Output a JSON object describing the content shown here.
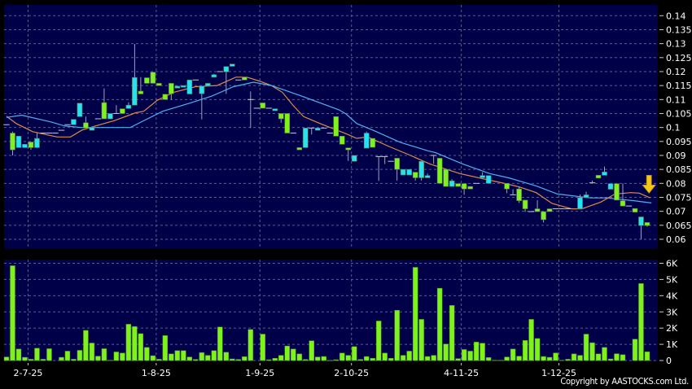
{
  "chart_data": [
    {
      "type": "candlestick",
      "panel": "price",
      "x_unit": "trading-day bar index",
      "x_tick_labels": [
        {
          "bar": 4,
          "label": "2-7-25"
        },
        {
          "bar": 25,
          "label": "1-8-25"
        },
        {
          "bar": 42,
          "label": "1-9-25"
        },
        {
          "bar": 57,
          "label": "2-10-25"
        },
        {
          "bar": 75,
          "label": "4-11-25"
        },
        {
          "bar": 91,
          "label": "1-12-25"
        }
      ],
      "ylim": [
        0.06,
        0.14
      ],
      "y_ticks": [
        "0.06",
        "0.065",
        "0.07",
        "0.075",
        "0.08",
        "0.085",
        "0.09",
        "0.095",
        "0.1",
        "0.105",
        "0.11",
        "0.115",
        "0.12",
        "0.125",
        "0.13",
        "0.135",
        "0.14"
      ],
      "grid": true,
      "colors": {
        "up": "#22e4f2",
        "down": "#7ff21a",
        "flat": "#c8c8d8",
        "wick": "#a0a0b8",
        "ma_short": "#e08a4a",
        "ma_long": "#4fb0f0",
        "arrow": "#f5c518",
        "background": "#000048",
        "gridline": "#5c5c90"
      },
      "ohlc_format": [
        "open",
        "high",
        "low",
        "close"
      ],
      "candles": [
        [
          0.101,
          0.101,
          0.101,
          0.101
        ],
        [
          0.098,
          0.0985,
          0.09,
          0.092
        ],
        [
          0.0928,
          0.0969,
          0.0928,
          0.0969
        ],
        [
          0.0928,
          0.094,
          0.0928,
          0.094
        ],
        [
          0.0948,
          0.0948,
          0.092,
          0.0928
        ],
        [
          0.0928,
          0.0982,
          0.0928,
          0.0961
        ],
        [
          0.098,
          0.098,
          0.098,
          0.098
        ],
        [
          0.098,
          0.098,
          0.098,
          0.098
        ],
        [
          0.098,
          0.098,
          0.098,
          0.098
        ],
        [
          0.099,
          0.099,
          0.099,
          0.099
        ],
        [
          0.101,
          0.101,
          0.101,
          0.101
        ],
        [
          0.101,
          0.1029,
          0.101,
          0.1029
        ],
        [
          0.1039,
          0.1087,
          0.1039,
          0.1087
        ],
        [
          0.1017,
          0.1039,
          0.0998,
          0.0998
        ],
        [
          0.099,
          0.1003,
          0.099,
          0.1
        ],
        [
          0.1031,
          0.1031,
          0.1031,
          0.1031
        ],
        [
          0.1089,
          0.114,
          0.1031,
          0.1031
        ],
        [
          0.1031,
          0.105,
          0.1031,
          0.105
        ],
        [
          0.105,
          0.108,
          0.105,
          0.105
        ],
        [
          0.1067,
          0.1067,
          0.105,
          0.105
        ],
        [
          0.1068,
          0.109,
          0.1068,
          0.108
        ],
        [
          0.108,
          0.1299,
          0.108,
          0.1179
        ],
        [
          0.113,
          0.118,
          0.112,
          0.112
        ],
        [
          0.1178,
          0.1178,
          0.1158,
          0.1158
        ],
        [
          0.1198,
          0.1198,
          0.1158,
          0.1158
        ],
        [
          0.1158,
          0.1158,
          0.115,
          0.115
        ],
        [
          0.1119,
          0.1119,
          0.11,
          0.11
        ],
        [
          0.1158,
          0.1158,
          0.11,
          0.1121
        ],
        [
          0.1141,
          0.1148,
          0.1141,
          0.1148
        ],
        [
          0.1145,
          0.115,
          0.1145,
          0.115
        ],
        [
          0.112,
          0.117,
          0.112,
          0.117
        ],
        [
          0.117,
          0.117,
          0.117,
          0.117
        ],
        [
          0.1121,
          0.1148,
          0.1029,
          0.1148
        ],
        [
          0.1148,
          0.1158,
          0.1148,
          0.1158
        ],
        [
          0.118,
          0.1192,
          0.118,
          0.1189
        ],
        [
          0.12,
          0.12,
          0.12,
          0.12
        ],
        [
          0.1199,
          0.1218,
          0.112,
          0.1218
        ],
        [
          0.1219,
          0.1227,
          0.1219,
          0.1227
        ],
        [
          0.117,
          0.117,
          0.117,
          0.117
        ],
        [
          0.118,
          0.118,
          0.117,
          0.117
        ],
        [
          0.11,
          0.1129,
          0.0998,
          0.11
        ],
        [
          0.1069,
          0.1069,
          0.1069,
          0.1069
        ],
        [
          0.1088,
          0.1088,
          0.1069,
          0.1069
        ],
        [
          0.1069,
          0.1069,
          0.1069,
          0.1069
        ],
        [
          0.106,
          0.1067,
          0.106,
          0.1067
        ],
        [
          0.105,
          0.105,
          0.1017,
          0.1031
        ],
        [
          0.105,
          0.105,
          0.098,
          0.098
        ],
        [
          0.098,
          0.098,
          0.098,
          0.098
        ],
        [
          0.0928,
          0.0928,
          0.092,
          0.092
        ],
        [
          0.0928,
          0.0998,
          0.0928,
          0.0998
        ],
        [
          0.0998,
          0.0998,
          0.0975,
          0.0998
        ],
        [
          0.099,
          0.0998,
          0.099,
          0.0998
        ],
        [
          0.0998,
          0.0998,
          0.0998,
          0.0998
        ],
        [
          0.098,
          0.098,
          0.098,
          0.098
        ],
        [
          0.1039,
          0.1039,
          0.0969,
          0.0969
        ],
        [
          0.0969,
          0.0969,
          0.094,
          0.094
        ],
        [
          0.0927,
          0.0927,
          0.088,
          0.092
        ],
        [
          0.0879,
          0.09,
          0.0879,
          0.09
        ],
        null,
        [
          0.0926,
          0.0985,
          0.0926,
          0.098
        ],
        [
          0.0961,
          0.0961,
          0.0929,
          0.0929
        ],
        [
          0.0896,
          0.0896,
          0.0809,
          0.0896
        ],
        [
          0.0896,
          0.0896,
          0.0869,
          0.0896
        ],
        [
          0.0879,
          0.0879,
          0.0879,
          0.0879
        ],
        [
          0.089,
          0.089,
          0.081,
          0.085
        ],
        [
          0.083,
          0.085,
          0.083,
          0.085
        ],
        [
          0.083,
          0.085,
          0.083,
          0.085
        ],
        [
          0.084,
          0.084,
          0.081,
          0.082
        ],
        [
          0.082,
          0.0879,
          0.081,
          0.0879
        ],
        [
          0.082,
          0.0835,
          0.082,
          0.0828
        ],
        [
          0.09,
          0.09,
          0.087,
          0.09
        ],
        [
          0.089,
          0.089,
          0.08,
          0.08
        ],
        [
          0.085,
          0.085,
          0.0789,
          0.0789
        ],
        [
          0.0789,
          0.0815,
          0.0789,
          0.0809
        ],
        [
          0.0799,
          0.0799,
          0.0789,
          0.0789
        ],
        [
          0.0799,
          0.0799,
          0.0759,
          0.078
        ],
        [
          0.0789,
          0.0789,
          0.078,
          0.078
        ],
        [
          0.08,
          0.08,
          0.08,
          0.08
        ],
        [
          0.082,
          0.084,
          0.082,
          0.0828
        ],
        [
          0.08,
          0.0828,
          0.08,
          0.0828
        ],
        null,
        null,
        [
          0.08,
          0.08,
          0.0765,
          0.078
        ],
        [
          0.0759,
          0.0779,
          0.0759,
          0.0759
        ],
        [
          0.078,
          0.0789,
          0.073,
          0.0738
        ],
        [
          0.074,
          0.074,
          0.0698,
          0.0709
        ],
        [
          0.0699,
          0.0699,
          0.0699,
          0.0699
        ],
        [
          0.0709,
          0.074,
          0.0699,
          0.0699
        ],
        [
          0.0699,
          0.0699,
          0.066,
          0.067
        ],
        [
          0.0709,
          0.0709,
          0.0699,
          0.0699
        ],
        [
          0.0709,
          0.0709,
          0.0709,
          0.0709
        ],
        [
          0.0709,
          0.0709,
          0.0709,
          0.0709
        ],
        [
          0.0709,
          0.0709,
          0.0709,
          0.0709
        ],
        null,
        [
          0.0709,
          0.076,
          0.0709,
          0.0749
        ],
        [
          0.0749,
          0.077,
          0.0749,
          0.0759
        ],
        [
          0.0802,
          0.081,
          0.0802,
          0.0802
        ],
        [
          0.0829,
          0.0829,
          0.0819,
          0.0819
        ],
        [
          0.0829,
          0.086,
          0.0829,
          0.0841
        ],
        [
          0.0779,
          0.0799,
          0.0779,
          0.0799
        ],
        [
          0.0799,
          0.0799,
          0.074,
          0.074
        ],
        [
          0.0738,
          0.08,
          0.0719,
          0.0719
        ],
        [
          0.0719,
          0.0719,
          0.0719,
          0.0719
        ],
        [
          0.071,
          0.071,
          0.0697,
          0.0697
        ],
        [
          0.0649,
          0.068,
          0.06,
          0.068
        ],
        [
          0.066,
          0.066,
          0.0645,
          0.0649
        ]
      ],
      "moving_averages": [
        {
          "key": "ma_short",
          "points": [
            [
              0,
              0.104
            ],
            [
              1.6,
              0.1014
            ],
            [
              4.3,
              0.0985
            ],
            [
              8.3,
              0.0966
            ],
            [
              10.5,
              0.0966
            ],
            [
              12.3,
              0.099
            ],
            [
              14.5,
              0.1005
            ],
            [
              17.6,
              0.1024
            ],
            [
              21.2,
              0.1053
            ],
            [
              22.5,
              0.1058
            ],
            [
              24.7,
              0.1097
            ],
            [
              27.4,
              0.1126
            ],
            [
              31,
              0.1146
            ],
            [
              34.5,
              0.115
            ],
            [
              37.6,
              0.118
            ],
            [
              39.4,
              0.118
            ],
            [
              41.6,
              0.1165
            ],
            [
              43.4,
              0.115
            ],
            [
              45.2,
              0.1126
            ],
            [
              47,
              0.1078
            ],
            [
              48.7,
              0.1039
            ],
            [
              51.4,
              0.1014
            ],
            [
              55.6,
              0.0978
            ],
            [
              57.4,
              0.0961
            ],
            [
              59.2,
              0.0966
            ],
            [
              62.7,
              0.0932
            ],
            [
              65.9,
              0.0903
            ],
            [
              69.4,
              0.0869
            ],
            [
              74.3,
              0.0835
            ],
            [
              79.2,
              0.0811
            ],
            [
              81.4,
              0.0801
            ],
            [
              84.1,
              0.0787
            ],
            [
              86.8,
              0.0767
            ],
            [
              89.4,
              0.0728
            ],
            [
              92.6,
              0.0709
            ],
            [
              94.3,
              0.0709
            ],
            [
              97.4,
              0.0733
            ],
            [
              99.7,
              0.0762
            ],
            [
              102.3,
              0.0767
            ],
            [
              103.7,
              0.0765
            ],
            [
              105.5,
              0.0748
            ]
          ]
        },
        {
          "key": "ma_long",
          "points": [
            [
              0,
              0.1036
            ],
            [
              2.5,
              0.1044
            ],
            [
              7.4,
              0.1019
            ],
            [
              9.6,
              0.1005
            ],
            [
              12.3,
              0.1
            ],
            [
              20.3,
              0.1
            ],
            [
              22,
              0.1019
            ],
            [
              25.6,
              0.1058
            ],
            [
              30,
              0.1087
            ],
            [
              33.6,
              0.1112
            ],
            [
              37.2,
              0.1146
            ],
            [
              40.5,
              0.1162
            ],
            [
              43.4,
              0.115
            ],
            [
              47.9,
              0.1116
            ],
            [
              54.5,
              0.1063
            ],
            [
              55.6,
              0.1049
            ],
            [
              57.4,
              0.1014
            ],
            [
              60.1,
              0.099
            ],
            [
              64.5,
              0.0947
            ],
            [
              69,
              0.0917
            ],
            [
              70.3,
              0.091
            ],
            [
              74.8,
              0.0869
            ],
            [
              79.2,
              0.0835
            ],
            [
              82.3,
              0.082
            ],
            [
              86.8,
              0.0791
            ],
            [
              90.3,
              0.0762
            ],
            [
              95.7,
              0.0748
            ],
            [
              98.3,
              0.0748
            ],
            [
              102.8,
              0.0738
            ],
            [
              105.7,
              0.073
            ]
          ]
        }
      ],
      "annotation": {
        "icon": "down-arrow-icon",
        "bar": 105.3,
        "price": 0.0765
      }
    },
    {
      "type": "bar",
      "panel": "volume",
      "ylim": [
        0,
        6000
      ],
      "y_ticks": [
        "0",
        "1K",
        "2K",
        "3K",
        "4K",
        "5K",
        "6K"
      ],
      "grid": true,
      "color": "#7ff21a",
      "values_k": [
        0.22,
        5.85,
        0.71,
        0.2,
        0.08,
        0.76,
        0.08,
        0.73,
        0,
        0.2,
        0.58,
        0.08,
        0.63,
        1.86,
        1.08,
        0.27,
        0.73,
        0.02,
        0.53,
        0.46,
        2.24,
        2.1,
        1.66,
        0.81,
        0.3,
        0.08,
        1.54,
        0.41,
        0.61,
        0.61,
        0.22,
        0.07,
        0.49,
        0.32,
        0.61,
        2.07,
        0.51,
        0.1,
        0.07,
        0.24,
        1.92,
        0,
        1.63,
        0.05,
        0.14,
        0.32,
        0.9,
        0.71,
        0.41,
        0.07,
        1.22,
        0.22,
        0.25,
        0.01,
        0.05,
        0.46,
        0.32,
        0.86,
        0.07,
        0.25,
        0.14,
        2.44,
        0.46,
        0.14,
        3.1,
        0.32,
        0.58,
        5.75,
        2.54,
        0.25,
        0.32,
        4.46,
        1.02,
        3.4,
        0.12,
        0.68,
        0.58,
        1.14,
        1.07,
        0.19,
        0.02,
        0.02,
        0.22,
        0.71,
        0.27,
        1.24,
        2.54,
        1.36,
        0.25,
        0.2,
        0.47,
        0.02,
        0.08,
        0.41,
        0.32,
        1.63,
        1.1,
        0.41,
        0.81,
        0.1,
        0.42,
        0.36,
        0,
        1.32,
        4.75,
        0.54
      ]
    }
  ],
  "footer": {
    "copyright": "Copyright by AASTOCKS.com Ltd."
  }
}
